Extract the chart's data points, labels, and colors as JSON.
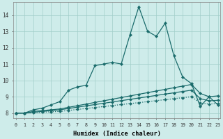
{
  "xlabel": "Humidex (Indice chaleur)",
  "background_color": "#ceecea",
  "grid_color": "#a2ceca",
  "line_color": "#1a6b6b",
  "xlim": [
    -0.3,
    23.3
  ],
  "ylim": [
    7.7,
    14.8
  ],
  "xticks": [
    0,
    1,
    2,
    3,
    4,
    5,
    6,
    7,
    8,
    9,
    10,
    11,
    12,
    13,
    14,
    15,
    16,
    17,
    18,
    19,
    20,
    21,
    22,
    23
  ],
  "yticks": [
    8,
    9,
    10,
    11,
    12,
    13,
    14
  ],
  "series": [
    {
      "y": [
        8.0,
        8.0,
        8.2,
        8.3,
        8.5,
        8.7,
        9.4,
        9.6,
        9.7,
        10.9,
        11.0,
        11.1,
        11.0,
        12.8,
        14.5,
        13.0,
        12.7,
        13.5,
        11.5,
        10.2,
        9.8,
        8.4,
        9.0,
        8.5
      ],
      "linestyle": "-",
      "marker": "D",
      "linewidth": 0.9,
      "markersize": 2.2
    },
    {
      "y": [
        8.0,
        8.0,
        8.1,
        8.15,
        8.2,
        8.25,
        8.35,
        8.45,
        8.55,
        8.65,
        8.75,
        8.85,
        8.95,
        9.05,
        9.15,
        9.25,
        9.35,
        9.45,
        9.55,
        9.65,
        9.75,
        9.2,
        9.0,
        9.05
      ],
      "linestyle": "-",
      "marker": "D",
      "linewidth": 0.9,
      "markersize": 2.2
    },
    {
      "y": [
        8.0,
        8.0,
        8.05,
        8.1,
        8.15,
        8.2,
        8.28,
        8.36,
        8.44,
        8.52,
        8.6,
        8.68,
        8.76,
        8.84,
        8.92,
        9.0,
        9.08,
        9.16,
        9.24,
        9.32,
        9.4,
        8.88,
        8.75,
        8.78
      ],
      "linestyle": "-",
      "marker": "D",
      "linewidth": 0.9,
      "markersize": 2.2
    },
    {
      "y": [
        8.0,
        8.0,
        8.02,
        8.05,
        8.08,
        8.1,
        8.16,
        8.22,
        8.28,
        8.34,
        8.4,
        8.46,
        8.52,
        8.58,
        8.64,
        8.7,
        8.76,
        8.82,
        8.88,
        8.94,
        9.0,
        8.62,
        8.55,
        8.58
      ],
      "linestyle": ":",
      "marker": "D",
      "linewidth": 0.9,
      "markersize": 2.2
    }
  ]
}
